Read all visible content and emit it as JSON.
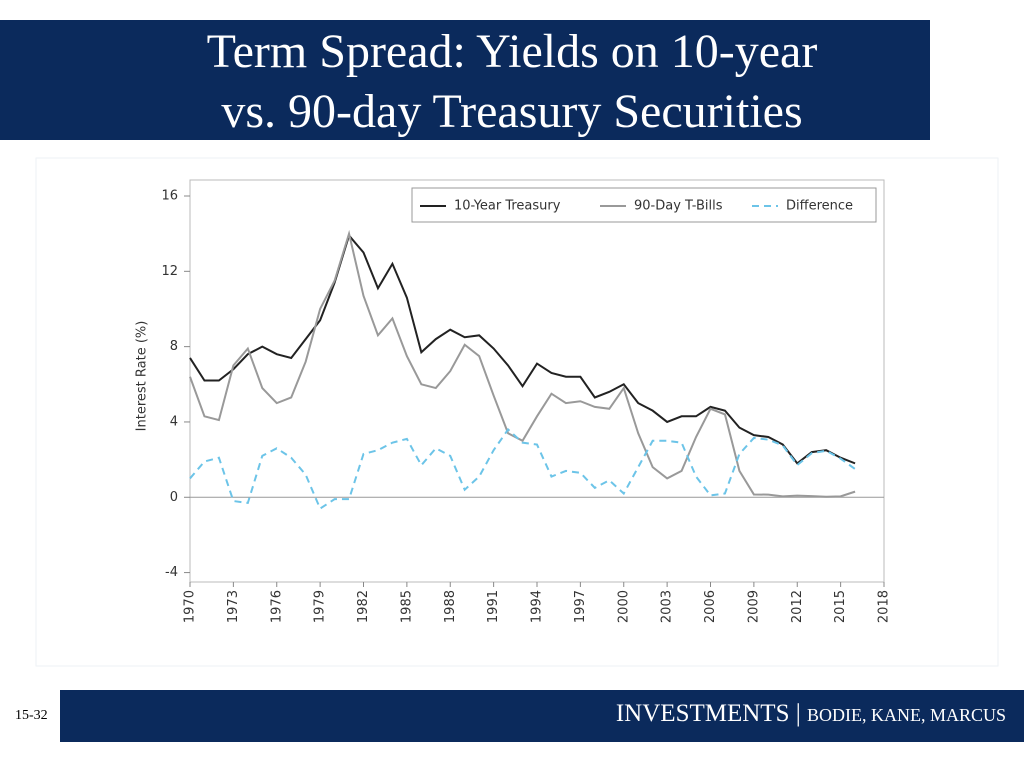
{
  "slide": {
    "title_line1": "Term Spread: Yields on 10-year",
    "title_line2": "vs. 90-day Treasury Securities",
    "page_number": "15-32",
    "footer": {
      "brand": "INVESTMENTS",
      "separator": "|",
      "authors": "BODIE, KANE, MARCUS"
    }
  },
  "chart_data": {
    "type": "line",
    "y_label": "Interest Rate (%)",
    "x": [
      1970,
      1971,
      1972,
      1973,
      1974,
      1975,
      1976,
      1977,
      1978,
      1979,
      1980,
      1981,
      1982,
      1983,
      1984,
      1985,
      1986,
      1987,
      1988,
      1989,
      1990,
      1991,
      1992,
      1993,
      1994,
      1995,
      1996,
      1997,
      1998,
      1999,
      2000,
      2001,
      2002,
      2003,
      2004,
      2005,
      2006,
      2007,
      2008,
      2009,
      2010,
      2011,
      2012,
      2013,
      2014,
      2015,
      2016
    ],
    "series": [
      {
        "name": "10-Year Treasury",
        "color": "#222222",
        "dash": false,
        "values": [
          7.4,
          6.2,
          6.2,
          6.8,
          7.6,
          8.0,
          7.6,
          7.4,
          8.4,
          9.4,
          11.4,
          13.9,
          13.0,
          11.1,
          12.4,
          10.6,
          7.7,
          8.4,
          8.9,
          8.5,
          8.6,
          7.9,
          7.0,
          5.9,
          7.1,
          6.6,
          6.4,
          6.4,
          5.3,
          5.6,
          6.0,
          5.0,
          4.6,
          4.0,
          4.3,
          4.3,
          4.8,
          4.6,
          3.7,
          3.3,
          3.2,
          2.8,
          1.8,
          2.4,
          2.5,
          2.1,
          1.8
        ]
      },
      {
        "name": "90-Day T-Bills",
        "color": "#999999",
        "dash": false,
        "values": [
          6.4,
          4.3,
          4.1,
          7.0,
          7.9,
          5.8,
          5.0,
          5.3,
          7.2,
          10.0,
          11.5,
          14.0,
          10.7,
          8.6,
          9.5,
          7.5,
          6.0,
          5.8,
          6.7,
          8.1,
          7.5,
          5.4,
          3.4,
          3.0,
          4.3,
          5.5,
          5.0,
          5.1,
          4.8,
          4.7,
          5.8,
          3.4,
          1.6,
          1.0,
          1.4,
          3.2,
          4.7,
          4.4,
          1.4,
          0.15,
          0.14,
          0.05,
          0.09,
          0.06,
          0.03,
          0.05,
          0.3
        ]
      },
      {
        "name": "Difference",
        "color": "#6cc4e8",
        "dash": true,
        "values": [
          1.0,
          1.9,
          2.1,
          -0.2,
          -0.3,
          2.2,
          2.6,
          2.1,
          1.2,
          -0.6,
          -0.1,
          -0.1,
          2.3,
          2.5,
          2.9,
          3.1,
          1.7,
          2.6,
          2.2,
          0.4,
          1.1,
          2.5,
          3.6,
          2.9,
          2.8,
          1.1,
          1.4,
          1.3,
          0.5,
          0.9,
          0.2,
          1.6,
          3.0,
          3.0,
          2.9,
          1.1,
          0.1,
          0.2,
          2.3,
          3.15,
          3.06,
          2.75,
          1.71,
          2.34,
          2.47,
          2.05,
          1.5
        ]
      }
    ],
    "xlim": [
      1970,
      2018
    ],
    "xticks": [
      1970,
      1973,
      1976,
      1979,
      1982,
      1985,
      1988,
      1991,
      1994,
      1997,
      2000,
      2003,
      2006,
      2009,
      2012,
      2015,
      2018
    ],
    "ylim": [
      -4.5,
      16.85
    ],
    "yticks": [
      -4,
      0,
      4,
      8,
      12,
      16
    ],
    "hline": 0,
    "legend": "upper right",
    "grid": false
  }
}
